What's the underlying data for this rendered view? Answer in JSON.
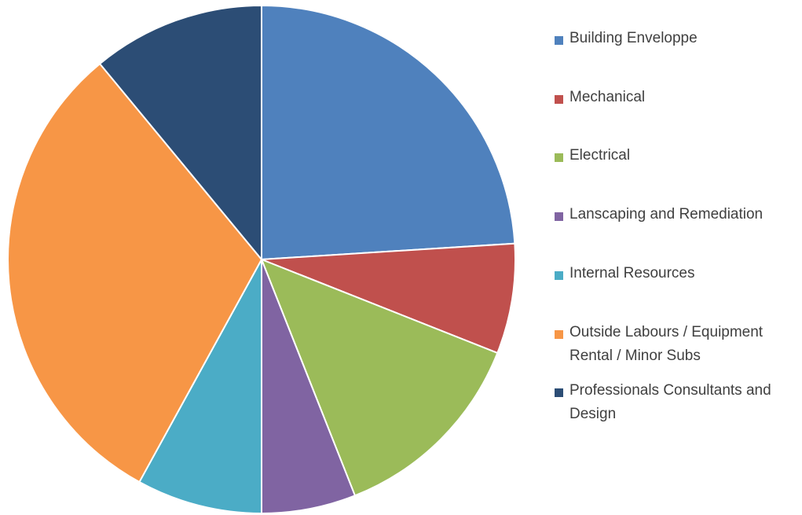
{
  "chart_data": {
    "type": "pie",
    "categories": [
      "Building Enveloppe",
      "Mechanical",
      "Electrical",
      "Lanscaping and Remediation",
      "Internal Resources",
      "Outside Labours / Equipment Rental / Minor Subs",
      "Professionals Consultants and Design"
    ],
    "values": [
      24,
      7,
      13,
      6,
      8,
      31,
      11
    ],
    "colors": [
      "#4f81bd",
      "#c0504d",
      "#9bbb59",
      "#8064a2",
      "#4bacc6",
      "#f79646",
      "#2c4d75"
    ],
    "legend": "right"
  }
}
